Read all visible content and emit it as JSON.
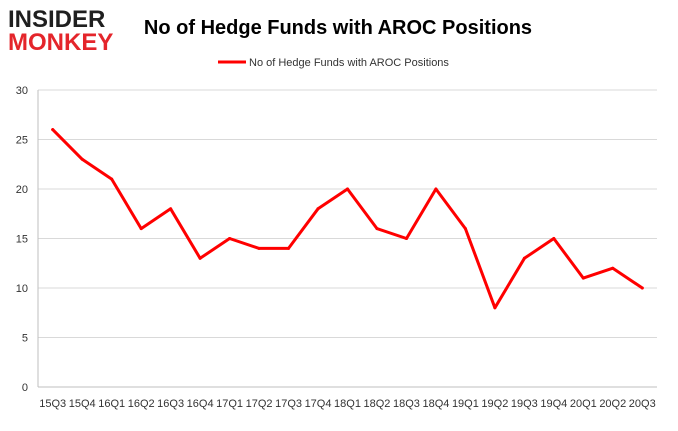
{
  "logo": {
    "line1": "INSIDER",
    "line2": "MONKEY"
  },
  "colors": {
    "line": "#ff0000",
    "grid": "#d9d9d9",
    "axis": "#bfbfbf",
    "logo_red": "#e4252b"
  },
  "chart_data": {
    "type": "line",
    "title": "No of Hedge Funds with AROC Positions",
    "xlabel": "",
    "ylabel": "",
    "ylim": [
      0,
      30
    ],
    "yticks": [
      0,
      5,
      10,
      15,
      20,
      25,
      30
    ],
    "grid": true,
    "legend_position": "top-center",
    "categories": [
      "15Q3",
      "15Q4",
      "16Q1",
      "16Q2",
      "16Q3",
      "16Q4",
      "17Q1",
      "17Q2",
      "17Q3",
      "17Q4",
      "18Q1",
      "18Q2",
      "18Q3",
      "18Q4",
      "19Q1",
      "19Q2",
      "19Q3",
      "19Q4",
      "20Q1",
      "20Q2",
      "20Q3"
    ],
    "series": [
      {
        "name": "No of Hedge Funds with AROC Positions",
        "values": [
          26,
          23,
          21,
          16,
          18,
          13,
          15,
          14,
          14,
          18,
          20,
          16,
          15,
          20,
          16,
          8,
          13,
          15,
          11,
          12,
          10
        ]
      }
    ]
  }
}
